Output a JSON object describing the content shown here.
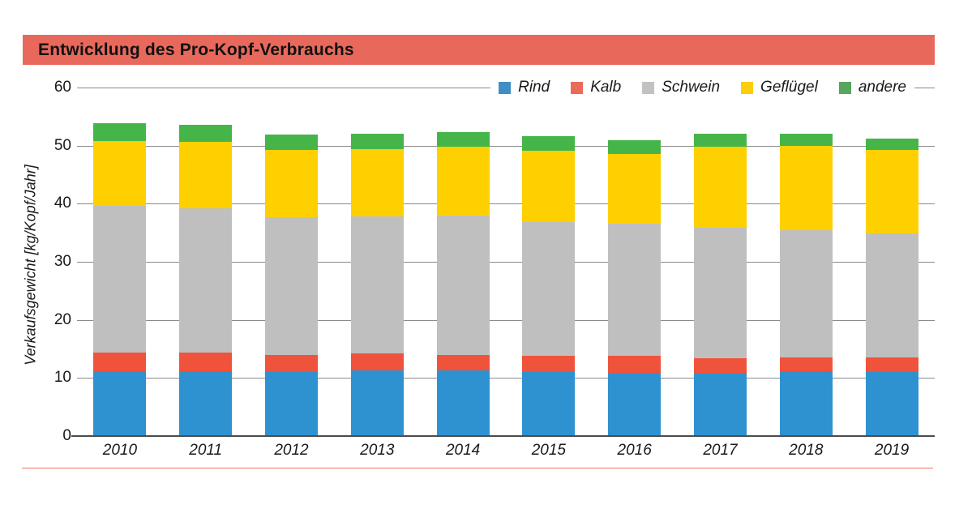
{
  "header": {
    "title": "Entwicklung des Pro-Kopf-Verbrauchs",
    "title_bar_color": "#E8695B"
  },
  "footer": {
    "rule_color": "#EF7263"
  },
  "chart_data": {
    "type": "bar",
    "stacked": true,
    "title": "Entwicklung des Pro-Kopf-Verbrauchs",
    "ylabel": "Verkaufsgewicht [kg/Kopf/Jahr]",
    "xlabel": "",
    "ylim": [
      0,
      60
    ],
    "yticks": [
      0,
      10,
      20,
      30,
      40,
      50,
      60
    ],
    "grid": true,
    "legend_position": "top-right-on-60-gridline",
    "categories": [
      "2010",
      "2011",
      "2012",
      "2013",
      "2014",
      "2015",
      "2016",
      "2017",
      "2018",
      "2019"
    ],
    "series": [
      {
        "name": "Rind",
        "color": "#2E92D1",
        "legend_color": "#3F8FC5",
        "values": [
          11.2,
          11.1,
          11.0,
          11.3,
          11.3,
          11.0,
          10.9,
          10.8,
          11.2,
          11.0
        ]
      },
      {
        "name": "Kalb",
        "color": "#F0533C",
        "legend_color": "#EC6A58",
        "values": [
          3.2,
          3.3,
          3.0,
          2.9,
          2.7,
          2.8,
          2.9,
          2.6,
          2.4,
          2.5
        ]
      },
      {
        "name": "Schwein",
        "color": "#BFBFBF",
        "legend_color": "#C2C2C2",
        "values": [
          25.3,
          24.8,
          23.7,
          23.6,
          23.9,
          23.1,
          22.7,
          22.5,
          21.8,
          21.4
        ]
      },
      {
        "name": "Geflügel",
        "color": "#FFD000",
        "legend_color": "#FBCE0D",
        "values": [
          11.1,
          11.5,
          11.5,
          11.6,
          11.9,
          12.2,
          12.0,
          13.9,
          14.5,
          14.4
        ]
      },
      {
        "name": "andere",
        "color": "#46B549",
        "legend_color": "#57A65D",
        "values": [
          3.0,
          2.9,
          2.7,
          2.6,
          2.6,
          2.5,
          2.5,
          2.3,
          2.2,
          1.9
        ]
      }
    ]
  }
}
